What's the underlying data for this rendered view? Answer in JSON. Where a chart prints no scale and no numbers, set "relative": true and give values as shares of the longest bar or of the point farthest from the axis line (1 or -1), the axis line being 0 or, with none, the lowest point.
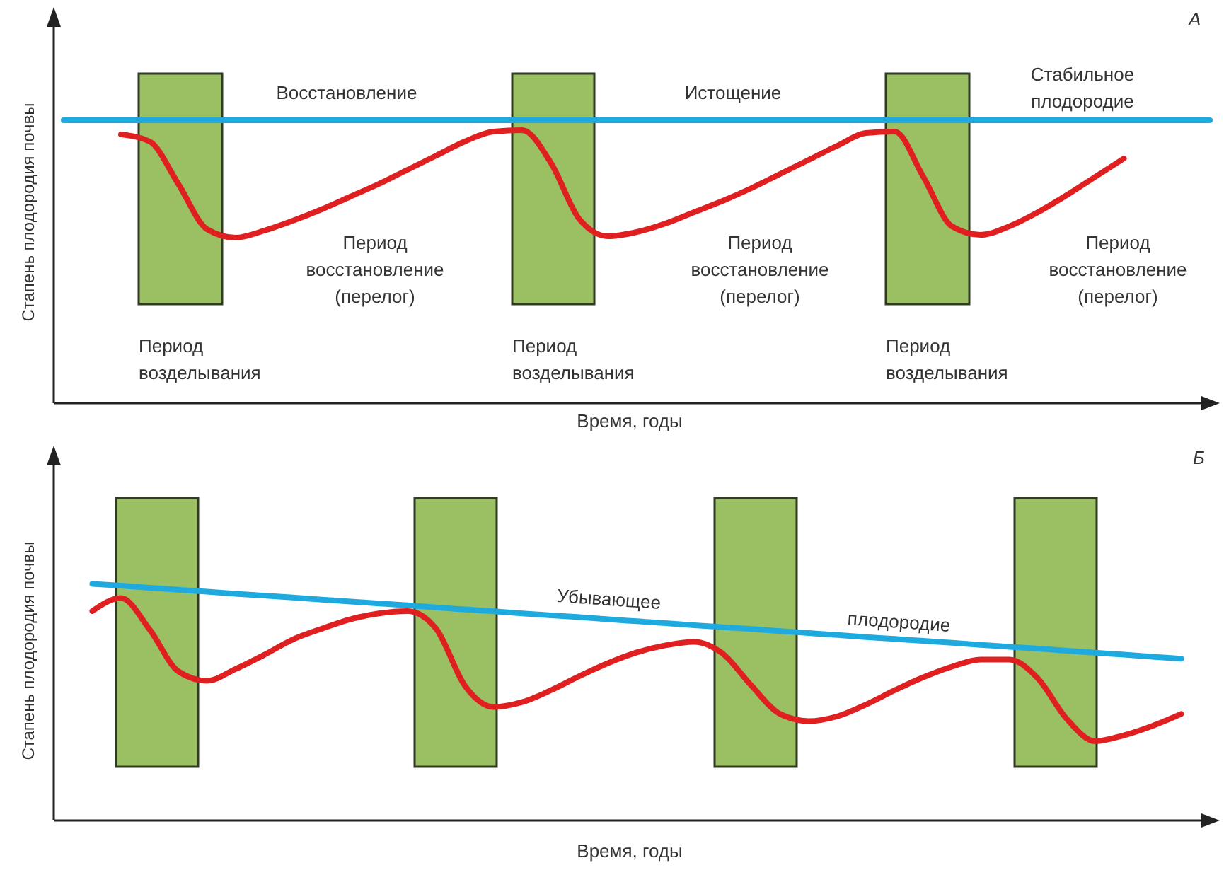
{
  "chart_data": [
    {
      "type": "line",
      "title": "А",
      "xlabel": "Время, годы",
      "ylabel": "Стапень плодородия почвы",
      "relative": true,
      "categories": [
        null,
        null,
        null,
        null,
        null,
        null,
        null,
        null,
        null,
        null,
        null,
        null,
        null,
        null,
        null,
        null,
        null,
        null,
        null,
        null,
        null,
        null,
        null,
        null,
        null,
        null,
        null,
        null,
        null,
        null,
        null,
        null,
        null,
        null,
        null,
        null,
        null,
        null,
        null,
        null,
        null
      ],
      "series": [
        {
          "color": "#1eaadf",
          "values": [
            1,
            1,
            1,
            1,
            1,
            1,
            1,
            1,
            1,
            1,
            1,
            1,
            1,
            1,
            1,
            1,
            1,
            1,
            1,
            1,
            1,
            1,
            1,
            1,
            1,
            1,
            1,
            1,
            1,
            1,
            1,
            1,
            1,
            1,
            1,
            1,
            1,
            1,
            1,
            1,
            1
          ]
        },
        {
          "color": "#e02020",
          "values": [
            null,
            null,
            0.95,
            0.925,
            0.775,
            0.615,
            0.585,
            0.61,
            0.645,
            0.685,
            0.73,
            0.775,
            0.825,
            0.875,
            0.925,
            0.96,
            0.965,
            0.85,
            0.65,
            0.59,
            0.605,
            0.635,
            0.675,
            0.715,
            0.76,
            0.81,
            0.86,
            0.91,
            0.955,
            0.96,
            0.8,
            0.625,
            0.595,
            0.625,
            0.675,
            0.735,
            0.8,
            0.865,
            null,
            null,
            null
          ]
        }
      ],
      "annotations": [
        "Восстановление",
        "Истощение",
        "Стабильное плодородие",
        "Период восстановление (перелог)",
        "Период восстановление (перелог)",
        "Период восстановление (перелог)",
        "Период возделывания",
        "Период возделывания",
        "Период возделывания"
      ]
    },
    {
      "type": "line",
      "title": "Б",
      "xlabel": "Время, годы",
      "ylabel": "Стапень плодородия почвы",
      "relative": true,
      "categories": [
        null,
        null,
        null,
        null,
        null,
        null,
        null,
        null,
        null,
        null,
        null,
        null,
        null,
        null,
        null,
        null,
        null,
        null,
        null,
        null,
        null,
        null,
        null,
        null,
        null,
        null,
        null,
        null,
        null,
        null,
        null,
        null,
        null,
        null,
        null,
        null,
        null,
        null,
        null,
        null,
        null
      ],
      "series": [
        {
          "color": "#1eaadf",
          "values": [
            null,
            1,
            0.992,
            0.983,
            0.975,
            0.967,
            0.958,
            0.95,
            0.942,
            0.933,
            0.925,
            0.917,
            0.909,
            0.9,
            0.892,
            0.884,
            0.875,
            0.867,
            0.859,
            0.85,
            0.842,
            0.834,
            0.825,
            0.817,
            0.809,
            0.8,
            0.792,
            0.784,
            0.775,
            0.767,
            0.759,
            0.751,
            0.742,
            0.734,
            0.726,
            0.717,
            0.709,
            0.701,
            0.692,
            0.684,
            null
          ]
        },
        {
          "color": "#e02020",
          "values": [
            null,
            0.885,
            0.94,
            0.807,
            0.63,
            0.59,
            0.64,
            0.7,
            0.765,
            0.81,
            0.85,
            0.875,
            0.885,
            0.81,
            0.57,
            0.48,
            0.5,
            0.55,
            0.61,
            0.665,
            0.71,
            0.74,
            0.755,
            0.705,
            0.57,
            0.45,
            0.42,
            0.44,
            0.49,
            0.55,
            0.605,
            0.65,
            0.68,
            0.68,
            0.6,
            0.43,
            0.335,
            0.36,
            0.4,
            0.45,
            null
          ]
        }
      ],
      "annotations": [
        "Убывающее",
        "плодородие"
      ]
    }
  ]
}
